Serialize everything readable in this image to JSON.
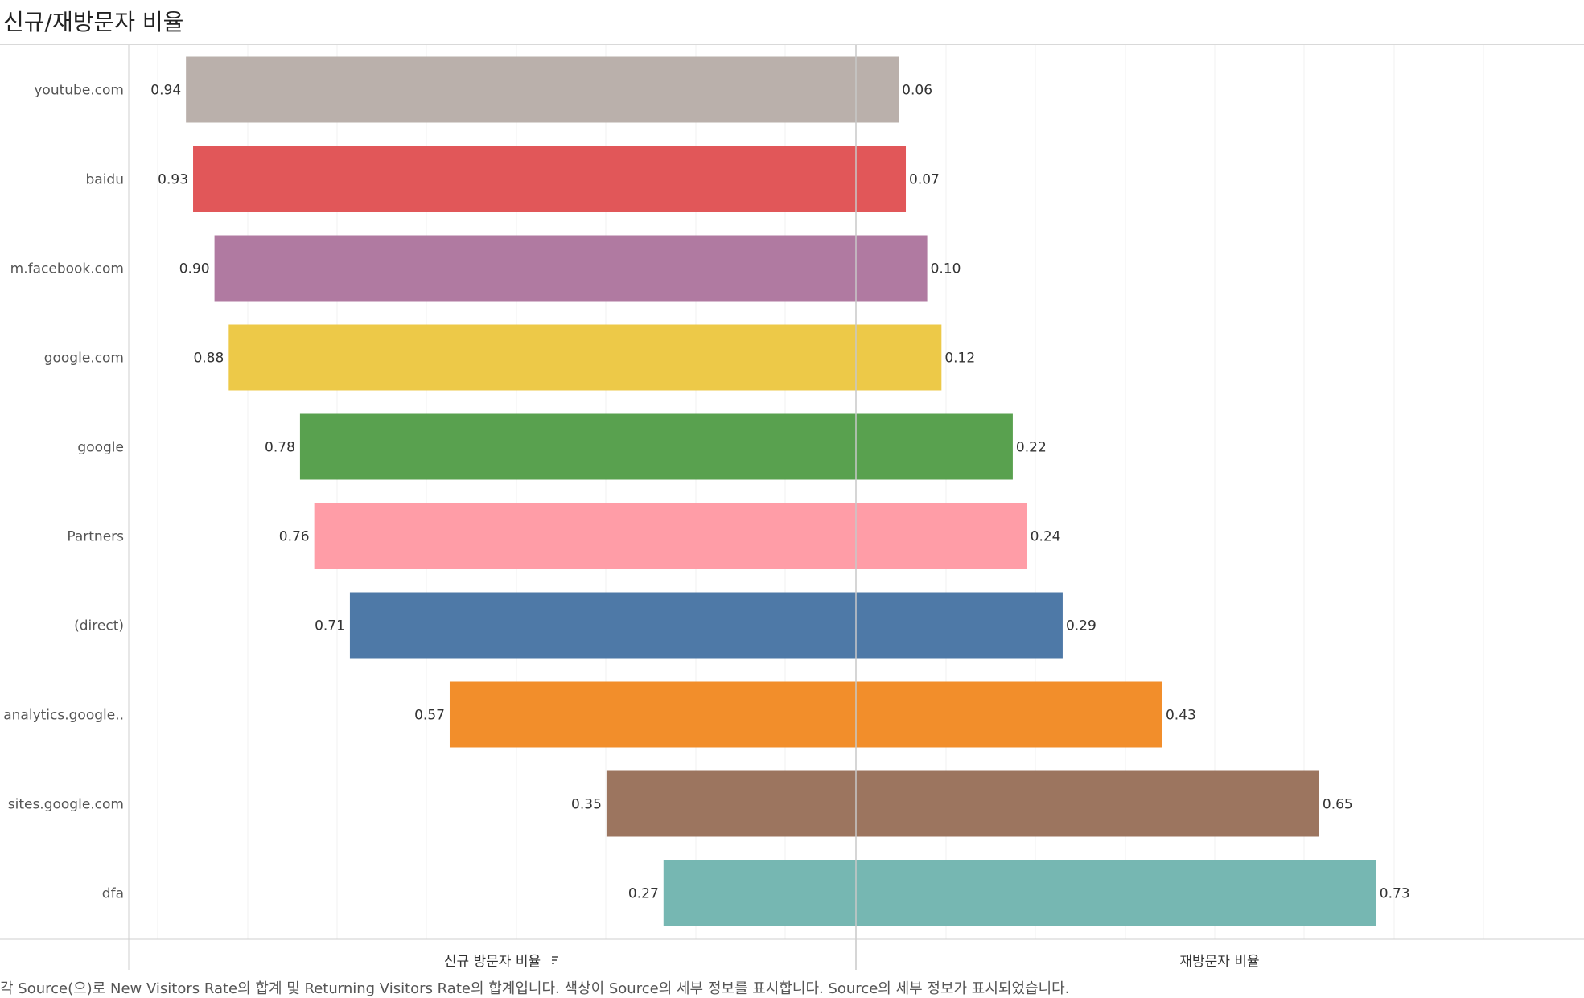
{
  "title": "신규/재방문자 비율",
  "footnote": "각 Source(으)로 New Visitors Rate의 합계 및 Returning Visitors Rate의 합계입니다. 색상이 Source의 세부 정보를 표시합니다. Source의 세부 정보가 표시되었습니다.",
  "chart_data": {
    "type": "bar",
    "orientation": "horizontal-diverging",
    "categories": [
      "youtube.com",
      "baidu",
      "m.facebook.com",
      "google.com",
      "google",
      "Partners",
      "(direct)",
      "analytics.google..",
      "sites.google.com",
      "dfa"
    ],
    "series": [
      {
        "name": "신규 방문자 비율",
        "values": [
          0.94,
          0.93,
          0.9,
          0.88,
          0.78,
          0.76,
          0.71,
          0.57,
          0.35,
          0.27
        ]
      },
      {
        "name": "재방문자 비율",
        "values": [
          0.06,
          0.07,
          0.1,
          0.12,
          0.22,
          0.24,
          0.29,
          0.43,
          0.65,
          0.73
        ]
      }
    ],
    "value_labels_new": [
      "0.94",
      "0.93",
      "0.90",
      "0.88",
      "0.78",
      "0.76",
      "0.71",
      "0.57",
      "0.35",
      "0.27"
    ],
    "value_labels_returning": [
      "0.06",
      "0.07",
      "0.10",
      "0.12",
      "0.22",
      "0.24",
      "0.29",
      "0.43",
      "0.65",
      "0.73"
    ],
    "colors": [
      "#bab0ab",
      "#e15759",
      "#b07aa1",
      "#edc948",
      "#59a14f",
      "#ff9da7",
      "#4e79a7",
      "#f28e2b",
      "#9c755f",
      "#76b7b2"
    ],
    "xlabel_left": "신규 방문자 비율",
    "sort_icon": "sort-descending-icon",
    "xlabel_right": "재방문자 비율",
    "xlim_left": [
      0,
      1.0
    ],
    "xlim_right": [
      0,
      1.0
    ],
    "grid": true,
    "legend": "none"
  }
}
